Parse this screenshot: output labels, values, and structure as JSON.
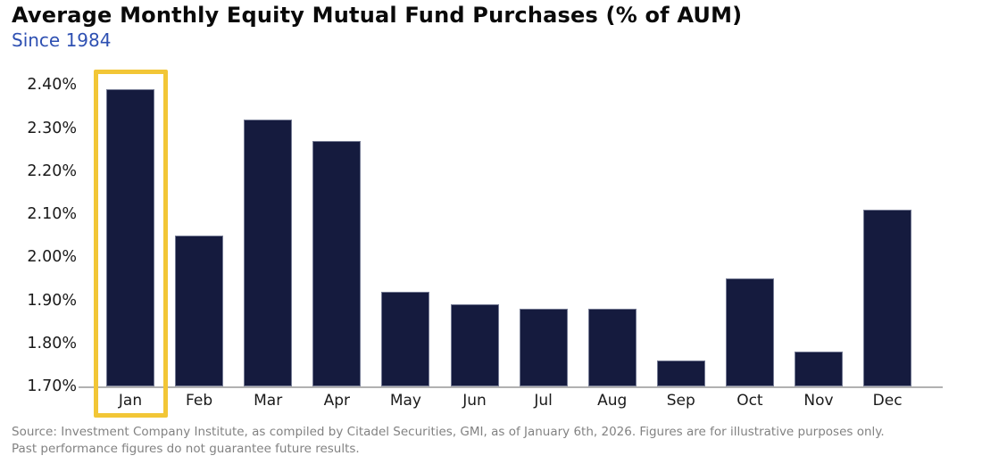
{
  "header": {
    "title": "Average Monthly Equity Mutual Fund Purchases (% of AUM)",
    "subtitle": "Since 1984"
  },
  "chart_data": {
    "type": "bar",
    "title": "Average Monthly Equity Mutual Fund Purchases (% of AUM)",
    "subtitle": "Since 1984",
    "categories": [
      "Jan",
      "Feb",
      "Mar",
      "Apr",
      "May",
      "Jun",
      "Jul",
      "Aug",
      "Sep",
      "Oct",
      "Nov",
      "Dec"
    ],
    "values": [
      2.39,
      2.05,
      2.32,
      2.27,
      1.92,
      1.89,
      1.88,
      1.88,
      1.76,
      1.95,
      1.78,
      2.11
    ],
    "value_unit": "% of AUM",
    "xlabel": "",
    "ylabel": "",
    "ylim": [
      1.7,
      2.4
    ],
    "ytick_step": 0.1,
    "yticks": [
      "2.40%",
      "2.30%",
      "2.20%",
      "2.10%",
      "2.00%",
      "1.90%",
      "1.80%",
      "1.70%"
    ],
    "grid": false,
    "legend": null,
    "bar_color": "#151B3E",
    "highlight": {
      "category": "Jan",
      "index": 0,
      "box_color": "#F2C636"
    }
  },
  "footer": {
    "line1": "Source: Investment Company Institute, as compiled by Citadel Securities, GMI, as of January 6th, 2026. Figures are for illustrative purposes only.",
    "line2": "Past performance figures do not guarantee future results."
  },
  "colors": {
    "title_text": "#0A0A0A",
    "subtitle_text": "#2E50B2",
    "axis_line": "#B1B1B1",
    "tick_label": "#1A1A1A",
    "footer_text": "#828282",
    "background": "#FFFFFF"
  }
}
